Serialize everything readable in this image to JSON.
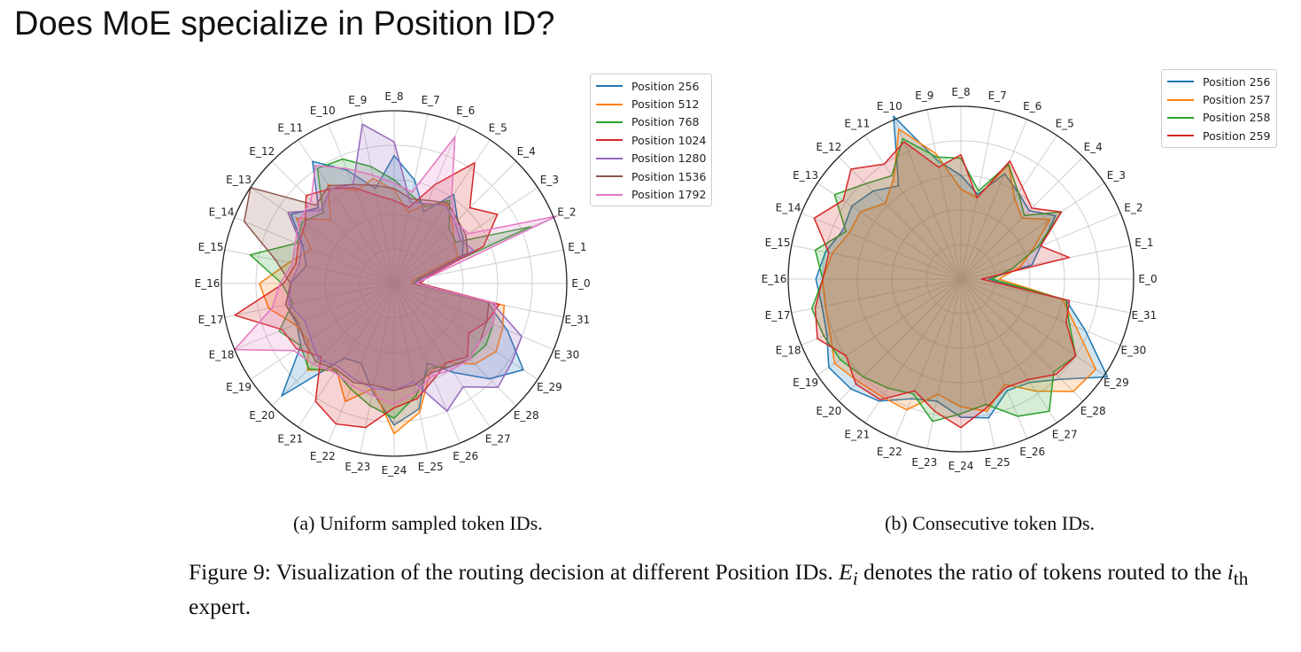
{
  "slide_title": "Does MoE specialize in Position ID?",
  "caption": {
    "sub_a": "(a) Uniform sampled token IDs.",
    "sub_b": "(b) Consecutive token IDs.",
    "figure_label": "Figure 9:",
    "text_1": " Visualization of the routing decision at different Position IDs. ",
    "ei_base": "E",
    "ei_sub": "i",
    "text_2": " denotes the ratio of tokens routed to the ",
    "ith_base": "i",
    "ith_sub": "th",
    "text_3": " expert."
  },
  "chart_data": [
    {
      "type": "radar",
      "id": "a",
      "title": "(a) Uniform sampled token IDs.",
      "categories": [
        "E_0",
        "E_1",
        "E_2",
        "E_3",
        "E_4",
        "E_5",
        "E_6",
        "E_7",
        "E_8",
        "E_9",
        "E_10",
        "E_11",
        "E_12",
        "E_13",
        "E_14",
        "E_15",
        "E_16",
        "E_17",
        "E_18",
        "E_19",
        "E_20",
        "E_21",
        "E_22",
        "E_23",
        "E_24",
        "E_25",
        "E_26",
        "E_27",
        "E_28",
        "E_29",
        "E_30",
        "E_31"
      ],
      "rlim": [
        0,
        1
      ],
      "grid": true,
      "legend_position": "upper-right",
      "series": [
        {
          "name": "Position 256",
          "color": "#1f77b4",
          "values": [
            0.12,
            0.15,
            0.43,
            0.48,
            0.52,
            0.62,
            0.45,
            0.61,
            0.74,
            0.56,
            0.71,
            0.85,
            0.62,
            0.72,
            0.57,
            0.52,
            0.6,
            0.64,
            0.61,
            0.65,
            0.92,
            0.52,
            0.5,
            0.64,
            0.82,
            0.74,
            0.5,
            0.62,
            0.78,
            0.9,
            0.71,
            0.55
          ]
        },
        {
          "name": "Position 512",
          "color": "#ff7f0e",
          "values": [
            0.1,
            0.12,
            0.4,
            0.42,
            0.48,
            0.55,
            0.5,
            0.42,
            0.54,
            0.62,
            0.58,
            0.69,
            0.52,
            0.68,
            0.52,
            0.62,
            0.78,
            0.74,
            0.62,
            0.6,
            0.71,
            0.6,
            0.74,
            0.62,
            0.87,
            0.76,
            0.55,
            0.55,
            0.66,
            0.71,
            0.68,
            0.65
          ]
        },
        {
          "name": "Position 768",
          "color": "#2ca02c",
          "values": [
            0.11,
            0.14,
            0.86,
            0.43,
            0.45,
            0.58,
            0.48,
            0.52,
            0.6,
            0.69,
            0.78,
            0.8,
            0.58,
            0.64,
            0.61,
            0.85,
            0.65,
            0.6,
            0.72,
            0.65,
            0.7,
            0.61,
            0.66,
            0.72,
            0.78,
            0.66,
            0.53,
            0.58,
            0.62,
            0.64,
            0.62,
            0.6
          ]
        },
        {
          "name": "Position 1024",
          "color": "#d62728",
          "values": [
            0.15,
            0.2,
            0.56,
            0.72,
            0.62,
            0.84,
            0.62,
            0.45,
            0.48,
            0.52,
            0.6,
            0.66,
            0.72,
            0.62,
            0.6,
            0.58,
            0.64,
            0.94,
            0.7,
            0.68,
            0.6,
            0.82,
            0.88,
            0.85,
            0.72,
            0.68,
            0.6,
            0.55,
            0.6,
            0.52,
            0.58,
            0.62
          ]
        },
        {
          "name": "Position 1280",
          "color": "#9467bd",
          "values": [
            0.12,
            0.18,
            0.5,
            0.46,
            0.5,
            0.54,
            0.5,
            0.48,
            0.82,
            0.94,
            0.62,
            0.66,
            0.6,
            0.74,
            0.58,
            0.56,
            0.6,
            0.62,
            0.56,
            0.58,
            0.62,
            0.58,
            0.6,
            0.62,
            0.62,
            0.58,
            0.8,
            0.72,
            0.85,
            0.82,
            0.8,
            0.58
          ]
        },
        {
          "name": "Position 1536",
          "color": "#8c564b",
          "values": [
            0.14,
            0.16,
            0.46,
            0.5,
            0.52,
            0.56,
            0.52,
            0.5,
            0.55,
            0.58,
            0.62,
            0.68,
            0.64,
            1.0,
            0.94,
            0.7,
            0.6,
            0.64,
            0.6,
            0.62,
            0.64,
            0.6,
            0.62,
            0.6,
            0.62,
            0.6,
            0.56,
            0.58,
            0.62,
            0.6,
            0.58,
            0.56
          ]
        },
        {
          "name": "Position 1792",
          "color": "#e377c2",
          "values": [
            0.13,
            0.22,
            1.02,
            0.52,
            0.5,
            0.6,
            0.92,
            0.54,
            0.58,
            0.64,
            0.72,
            0.82,
            0.68,
            0.66,
            0.62,
            0.6,
            0.66,
            0.72,
            1.0,
            0.7,
            0.66,
            0.62,
            0.64,
            0.66,
            0.7,
            0.64,
            0.58,
            0.6,
            0.62,
            0.6,
            0.62,
            0.6
          ]
        }
      ]
    },
    {
      "type": "radar",
      "id": "b",
      "title": "(b) Consecutive token IDs.",
      "categories": [
        "E_0",
        "E_1",
        "E_2",
        "E_3",
        "E_4",
        "E_5",
        "E_6",
        "E_7",
        "E_8",
        "E_9",
        "E_10",
        "E_11",
        "E_12",
        "E_13",
        "E_14",
        "E_15",
        "E_16",
        "E_17",
        "E_18",
        "E_19",
        "E_20",
        "E_21",
        "E_22",
        "E_23",
        "E_24",
        "E_25",
        "E_26",
        "E_27",
        "E_28",
        "E_29",
        "E_30",
        "E_31"
      ],
      "rlim": [
        0,
        1
      ],
      "grid": true,
      "legend_position": "upper-right",
      "series": [
        {
          "name": "Position 256",
          "color": "#1f77b4",
          "values": [
            0.16,
            0.42,
            0.5,
            0.66,
            0.56,
            0.6,
            0.66,
            0.5,
            0.6,
            0.7,
            1.02,
            0.65,
            0.72,
            0.76,
            0.74,
            0.8,
            0.84,
            0.82,
            0.84,
            0.92,
            0.9,
            0.85,
            0.75,
            0.72,
            0.8,
            0.82,
            0.7,
            0.72,
            0.82,
            1.02,
            0.78,
            0.62
          ]
        },
        {
          "name": "Position 257",
          "color": "#ff7f0e",
          "values": [
            0.22,
            0.35,
            0.45,
            0.62,
            0.5,
            0.56,
            0.72,
            0.48,
            0.52,
            0.74,
            0.94,
            0.7,
            0.62,
            0.7,
            0.7,
            0.76,
            0.8,
            0.8,
            0.82,
            0.88,
            0.84,
            0.82,
            0.82,
            0.68,
            0.74,
            0.78,
            0.66,
            0.78,
            0.92,
            0.94,
            0.72,
            0.6
          ]
        },
        {
          "name": "Position 258",
          "color": "#2ca02c",
          "values": [
            0.18,
            0.3,
            0.48,
            0.7,
            0.52,
            0.6,
            0.72,
            0.52,
            0.7,
            0.72,
            0.88,
            0.72,
            0.78,
            0.88,
            0.72,
            0.86,
            0.8,
            0.88,
            0.86,
            0.84,
            0.8,
            0.76,
            0.72,
            0.84,
            0.78,
            0.74,
            0.86,
            0.92,
            0.76,
            0.8,
            0.68,
            0.62
          ]
        },
        {
          "name": "Position 259",
          "color": "#d62728",
          "values": [
            0.12,
            0.64,
            0.5,
            0.7,
            0.58,
            0.64,
            0.74,
            0.48,
            0.72,
            0.66,
            0.86,
            0.8,
            0.9,
            0.82,
            0.92,
            0.78,
            0.8,
            0.86,
            0.9,
            0.8,
            0.86,
            0.84,
            0.7,
            0.78,
            0.86,
            0.76,
            0.68,
            0.7,
            0.78,
            0.8,
            0.66,
            0.64
          ]
        }
      ]
    }
  ]
}
